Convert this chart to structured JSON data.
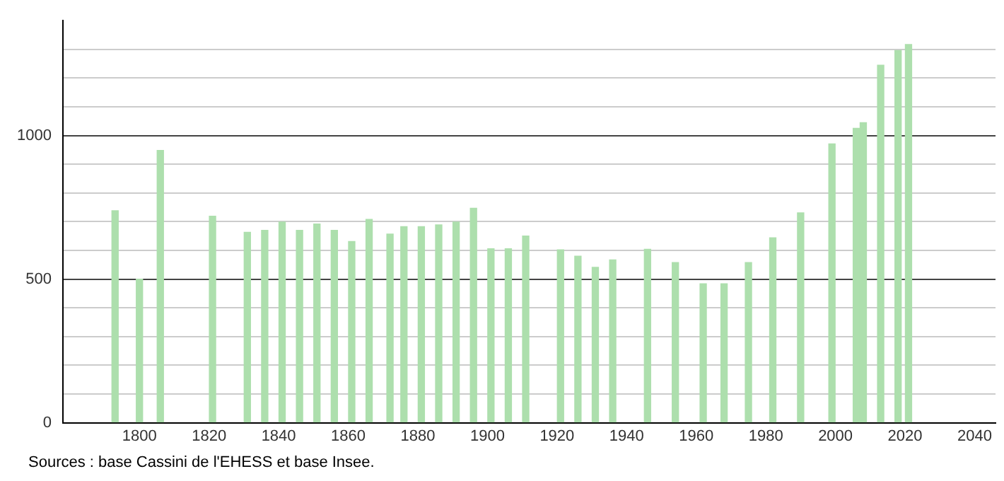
{
  "chart_data": {
    "type": "bar",
    "x": [
      1793,
      1800,
      1806,
      1821,
      1831,
      1836,
      1841,
      1846,
      1851,
      1856,
      1861,
      1866,
      1872,
      1876,
      1881,
      1886,
      1891,
      1896,
      1901,
      1906,
      1911,
      1921,
      1926,
      1931,
      1936,
      1946,
      1954,
      1962,
      1968,
      1975,
      1982,
      1990,
      1999,
      2006,
      2008,
      2013,
      2018,
      2021
    ],
    "values": [
      738,
      500,
      948,
      719,
      663,
      670,
      699,
      670,
      692,
      670,
      631,
      708,
      657,
      683,
      683,
      689,
      699,
      747,
      606,
      606,
      650,
      602,
      580,
      541,
      567,
      604,
      558,
      484,
      484,
      558,
      644,
      731,
      971,
      1025,
      1045,
      1245,
      1296,
      1317
    ],
    "color": "#addfad",
    "xlim": [
      1778,
      2046
    ],
    "xticks": [
      1800,
      1820,
      1840,
      1860,
      1880,
      1900,
      1920,
      1940,
      1960,
      1980,
      2000,
      2020,
      2040
    ],
    "ylim": [
      0,
      1400
    ],
    "yticks": [
      0,
      {
        "value": 100,
        "label": null
      },
      {
        "value": 200,
        "label": null
      },
      {
        "value": 300,
        "label": null
      },
      {
        "value": 400,
        "label": null
      },
      500,
      {
        "value": 600,
        "label": null
      },
      {
        "value": 700,
        "label": null
      },
      {
        "value": 800,
        "label": null
      },
      {
        "value": 900,
        "label": null
      },
      1000,
      {
        "value": 1100,
        "label": null
      },
      {
        "value": 1200,
        "label": null
      },
      {
        "value": 1300,
        "label": null
      }
    ],
    "grid": "y",
    "annotations": [
      "Sources : base Cassini de l'EHESS et base Insee."
    ]
  }
}
